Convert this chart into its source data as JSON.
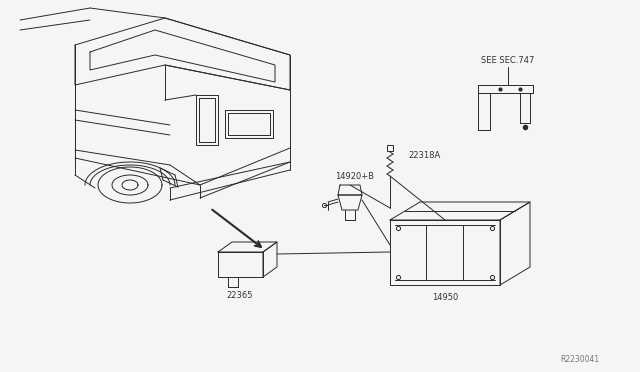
{
  "bg_color": "#f5f5f5",
  "line_color": "#2a2a2a",
  "text_color": "#333333",
  "fig_width": 6.4,
  "fig_height": 3.72,
  "dpi": 100,
  "labels": {
    "see_sec": "SEE SEC.747",
    "part_22318A": "22318A",
    "part_14920B": "14920+B",
    "part_14950": "14950",
    "part_22365": "22365",
    "ref_code": "R2230041"
  }
}
